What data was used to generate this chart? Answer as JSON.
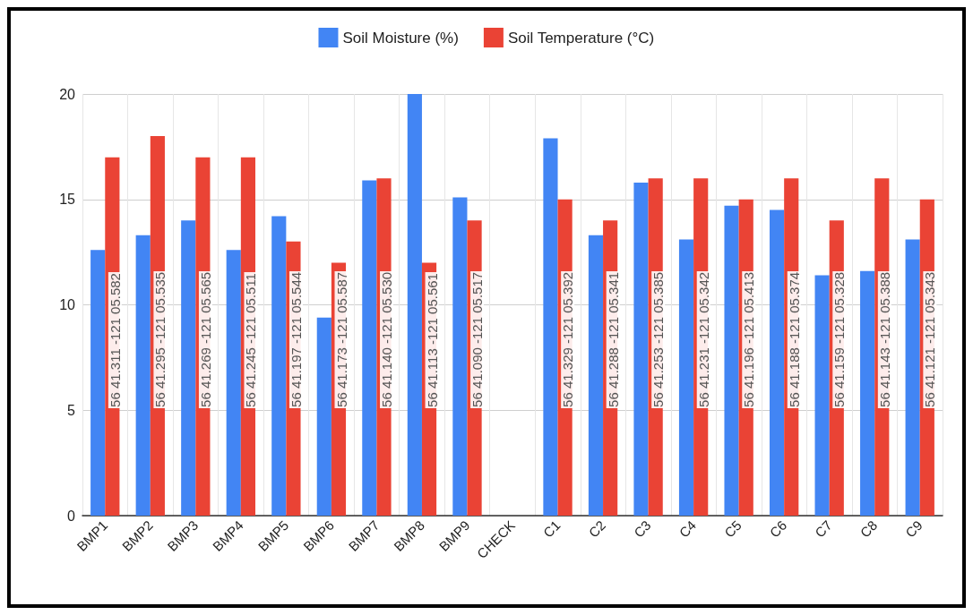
{
  "chart_data": {
    "type": "bar",
    "categories": [
      "BMP1",
      "BMP2",
      "BMP3",
      "BMP4",
      "BMP5",
      "BMP6",
      "BMP7",
      "BMP8",
      "BMP9",
      "CHECK",
      "C1",
      "C2",
      "C3",
      "C4",
      "C5",
      "C6",
      "C7",
      "C8",
      "C9"
    ],
    "series": [
      {
        "name": "Soil Moisture (%)",
        "color": "#4285f4",
        "values": [
          12.6,
          13.3,
          14.0,
          12.6,
          14.2,
          9.4,
          15.9,
          20,
          15.1,
          null,
          17.9,
          13.3,
          15.8,
          13.1,
          14.7,
          14.5,
          11.4,
          11.6,
          13.1
        ]
      },
      {
        "name": "Soil Temperature (°C)",
        "color": "#ea4335",
        "values": [
          17,
          18,
          17,
          17,
          13,
          12,
          16,
          12,
          14,
          null,
          15,
          14,
          16,
          16,
          15,
          16,
          14,
          16,
          15
        ]
      }
    ],
    "annotations": [
      {
        "text": "56 41.311 -121 05.582",
        "x": "BMP1"
      },
      {
        "text": "56 41.295 -121 05.535",
        "x": "BMP2"
      },
      {
        "text": "56 41.269 -121 05.565",
        "x": "BMP3"
      },
      {
        "text": "56 41.245 -121 05.511",
        "x": "BMP4"
      },
      {
        "text": "56 41.197 -121 05.544",
        "x": "BMP5"
      },
      {
        "text": "56 41.173 -121 05.587",
        "x": "BMP6"
      },
      {
        "text": "56 41.140 -121 05.530",
        "x": "BMP7"
      },
      {
        "text": "56 41.113 -121 05.561",
        "x": "BMP8"
      },
      {
        "text": "56 41.090 -121 05.517",
        "x": "BMP9"
      },
      {
        "text": "56 41.329 -121 05.392",
        "x": "C1"
      },
      {
        "text": "56 41.288 -121 05.341",
        "x": "C2"
      },
      {
        "text": "56 41.253 -121 05.385",
        "x": "C3"
      },
      {
        "text": "56 41.231 -121 05.342",
        "x": "C4"
      },
      {
        "text": "56 41.196 -121 05.413",
        "x": "C5"
      },
      {
        "text": "56 41.188 -121 05.374",
        "x": "C6"
      },
      {
        "text": "56 41.159 -121 05.328",
        "x": "C7"
      },
      {
        "text": "56 41.143 -121 05.388",
        "x": "C8"
      },
      {
        "text": "56 41.121 -121 05.343",
        "x": "C9"
      }
    ],
    "ylim": [
      0,
      20
    ],
    "yticks": [
      0,
      5,
      10,
      15,
      20
    ],
    "grid": true,
    "legend": "top"
  }
}
